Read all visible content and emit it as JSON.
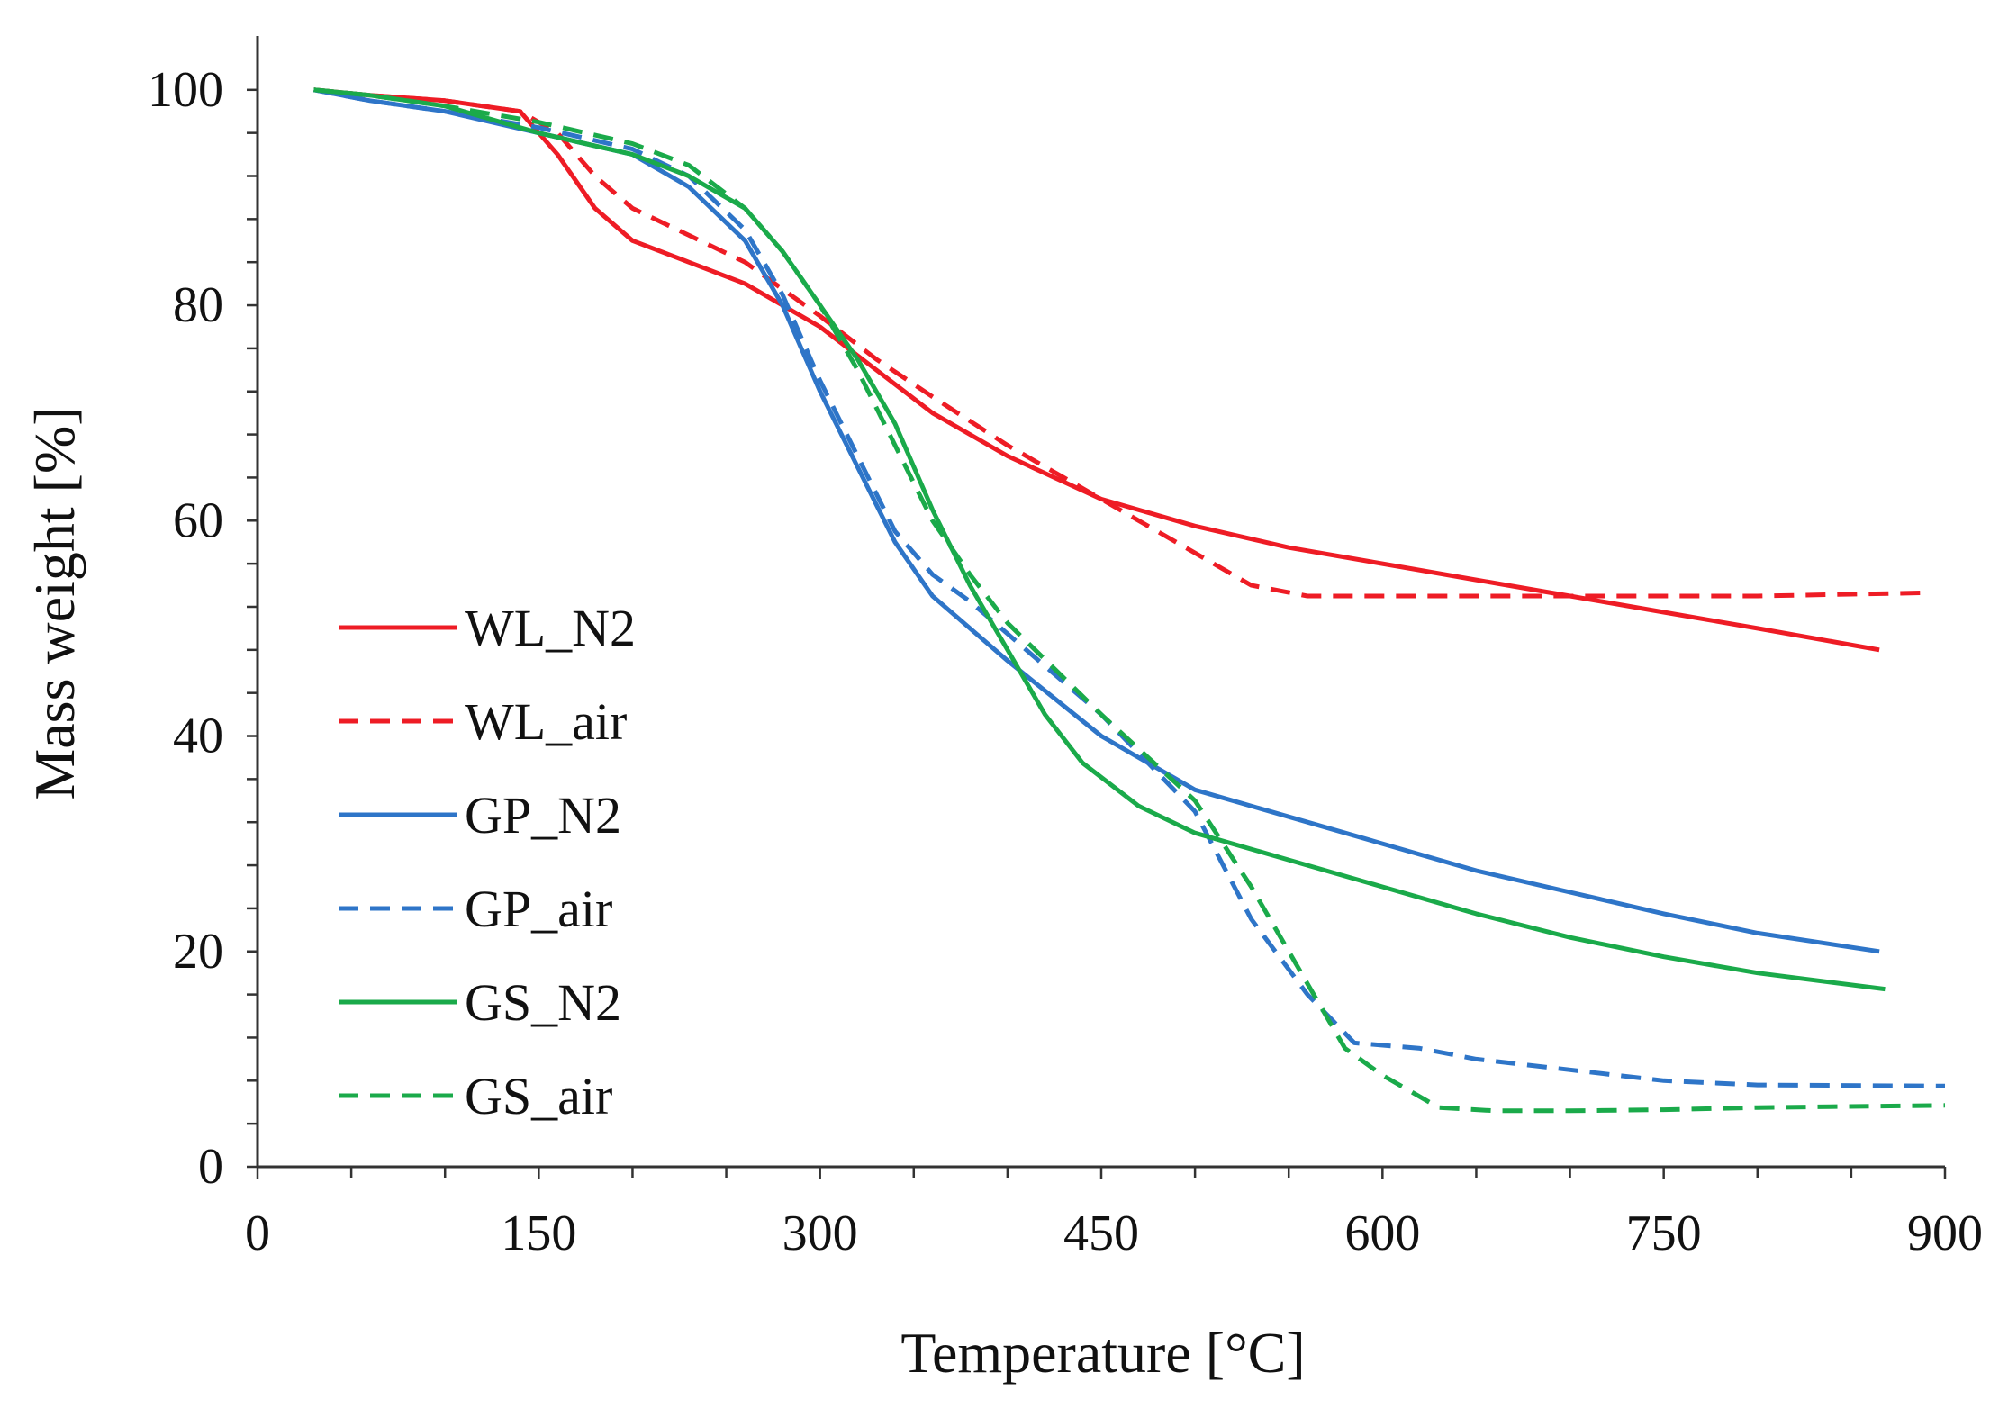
{
  "chart_data": {
    "type": "line",
    "title": "",
    "xlabel": "Temperature [°C]",
    "ylabel": "Mass weight [%]",
    "xlim": [
      0,
      900
    ],
    "ylim": [
      0,
      105
    ],
    "xticks": [
      0,
      150,
      300,
      450,
      600,
      750,
      900
    ],
    "yticks": [
      0,
      20,
      40,
      60,
      80,
      100
    ],
    "grid": false,
    "legend_position": "left-center",
    "series": [
      {
        "name": "WL_N2",
        "color": "#ee1c25",
        "dashed": false,
        "x": [
          30,
          60,
          100,
          140,
          160,
          180,
          200,
          230,
          260,
          300,
          330,
          360,
          400,
          450,
          500,
          550,
          600,
          650,
          700,
          750,
          800,
          865
        ],
        "y": [
          100,
          99.5,
          99,
          98,
          94,
          89,
          86,
          84,
          82,
          78,
          74,
          70,
          66,
          62,
          59.5,
          57.5,
          56,
          54.5,
          53,
          51.5,
          50,
          48
        ]
      },
      {
        "name": "WL_air",
        "color": "#ee1c25",
        "dashed": false,
        "x": [
          30,
          60,
          100,
          140,
          160,
          180,
          200,
          230,
          260,
          300,
          330,
          360,
          400,
          450,
          500,
          530,
          560,
          600,
          650,
          700,
          750,
          800,
          890
        ],
        "y": [
          100,
          99.5,
          99,
          98,
          96,
          92,
          89,
          86.5,
          84,
          79,
          75,
          71.5,
          67,
          62,
          57,
          54,
          53,
          53,
          53,
          53,
          53,
          53,
          53.3
        ]
      },
      {
        "name": "GP_N2",
        "color": "#2e75c8",
        "dashed": false,
        "x": [
          30,
          60,
          100,
          150,
          200,
          230,
          260,
          280,
          300,
          320,
          340,
          360,
          380,
          400,
          450,
          500,
          550,
          600,
          650,
          700,
          750,
          800,
          865
        ],
        "y": [
          100,
          99,
          98,
          96,
          94,
          91,
          86,
          80,
          72,
          65,
          58,
          53,
          50,
          47,
          40,
          35,
          32.5,
          30,
          27.5,
          25.5,
          23.5,
          21.7,
          20
        ]
      },
      {
        "name": "GP_air",
        "color": "#2e75c8",
        "dashed": true,
        "x": [
          30,
          60,
          100,
          150,
          200,
          230,
          260,
          280,
          300,
          320,
          340,
          360,
          380,
          400,
          450,
          500,
          530,
          560,
          585,
          620,
          650,
          700,
          750,
          800,
          900
        ],
        "y": [
          100,
          99,
          98,
          96.5,
          94.5,
          92,
          87,
          81,
          73,
          66,
          59,
          55,
          52.5,
          49.5,
          42,
          33,
          23,
          16,
          11.5,
          11,
          10,
          9,
          8,
          7.6,
          7.5
        ]
      },
      {
        "name": "GS_N2",
        "color": "#1aaa4a",
        "dashed": false,
        "x": [
          30,
          60,
          100,
          150,
          200,
          230,
          260,
          280,
          300,
          320,
          340,
          360,
          380,
          400,
          420,
          440,
          470,
          500,
          550,
          600,
          650,
          700,
          750,
          800,
          868
        ],
        "y": [
          100,
          99.5,
          98.5,
          96,
          94,
          92,
          89,
          85,
          80,
          75,
          69,
          61,
          54,
          48,
          42,
          37.5,
          33.5,
          31,
          28.5,
          26,
          23.5,
          21.3,
          19.5,
          18,
          16.5
        ]
      },
      {
        "name": "GS_air",
        "color": "#1aaa4a",
        "dashed": true,
        "x": [
          30,
          60,
          100,
          150,
          200,
          230,
          260,
          280,
          300,
          320,
          340,
          360,
          380,
          400,
          450,
          500,
          530,
          560,
          580,
          600,
          630,
          660,
          700,
          750,
          800,
          900
        ],
        "y": [
          100,
          99.5,
          98.5,
          97,
          95,
          93,
          89,
          85,
          80,
          74,
          67,
          60,
          55,
          50.5,
          42,
          34,
          26,
          17,
          11,
          8.5,
          5.5,
          5.2,
          5.2,
          5.3,
          5.5,
          5.7
        ]
      }
    ]
  }
}
